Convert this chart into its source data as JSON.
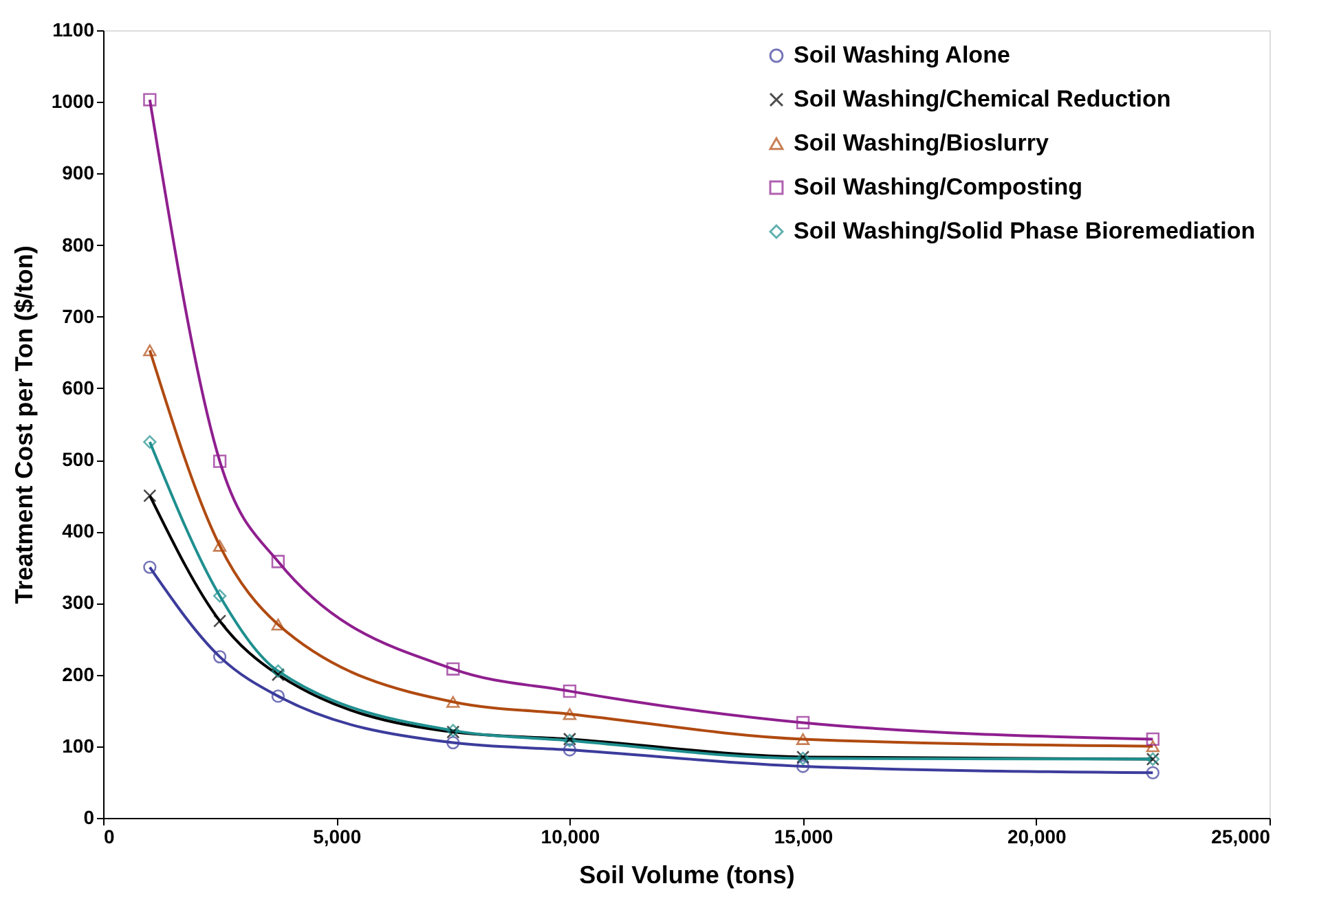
{
  "chart_data": {
    "type": "line",
    "xlabel": "Soil Volume (tons)",
    "ylabel": "Treatment Cost per Ton ($/ton)",
    "x": [
      1000,
      2500,
      3750,
      7500,
      10000,
      15000,
      22500
    ],
    "xlim": [
      0,
      25000
    ],
    "xticks": [
      0,
      {
        "value": 5000,
        "label": "5,000"
      },
      {
        "value": 10000,
        "label": "10,000"
      },
      {
        "value": 15000,
        "label": "15,000"
      },
      {
        "value": 20000,
        "label": "20,000"
      },
      {
        "value": 25000,
        "label": "25,000"
      }
    ],
    "ylim": [
      0,
      1100
    ],
    "yticks": [
      0,
      100,
      200,
      300,
      400,
      500,
      600,
      700,
      800,
      900,
      1000,
      1100
    ],
    "grid": false,
    "legend": "top right",
    "line_style": "solid",
    "series": [
      {
        "name": "Soil Washing Alone",
        "color": "#3c3c9c",
        "marker": "circle",
        "values": [
          350,
          225,
          170,
          105,
          95,
          72,
          63
        ]
      },
      {
        "name": "Soil Washing/Chemical Reduction",
        "color": "#000000",
        "marker": "cross",
        "values": [
          450,
          275,
          200,
          120,
          110,
          85,
          82
        ]
      },
      {
        "name": "Soil Washing/Bioslurry",
        "color": "#b04a10",
        "marker": "triangle",
        "values": [
          653,
          380,
          270,
          162,
          145,
          110,
          100
        ]
      },
      {
        "name": "Soil Washing/Composting",
        "color": "#8f1f8f",
        "marker": "square",
        "values": [
          1003,
          498,
          358,
          208,
          177,
          133,
          110
        ]
      },
      {
        "name": "Soil Washing/Solid Phase Bioremediation",
        "color": "#1f8f8f",
        "marker": "diamond",
        "values": [
          525,
          310,
          205,
          122,
          108,
          83,
          82
        ]
      }
    ]
  }
}
